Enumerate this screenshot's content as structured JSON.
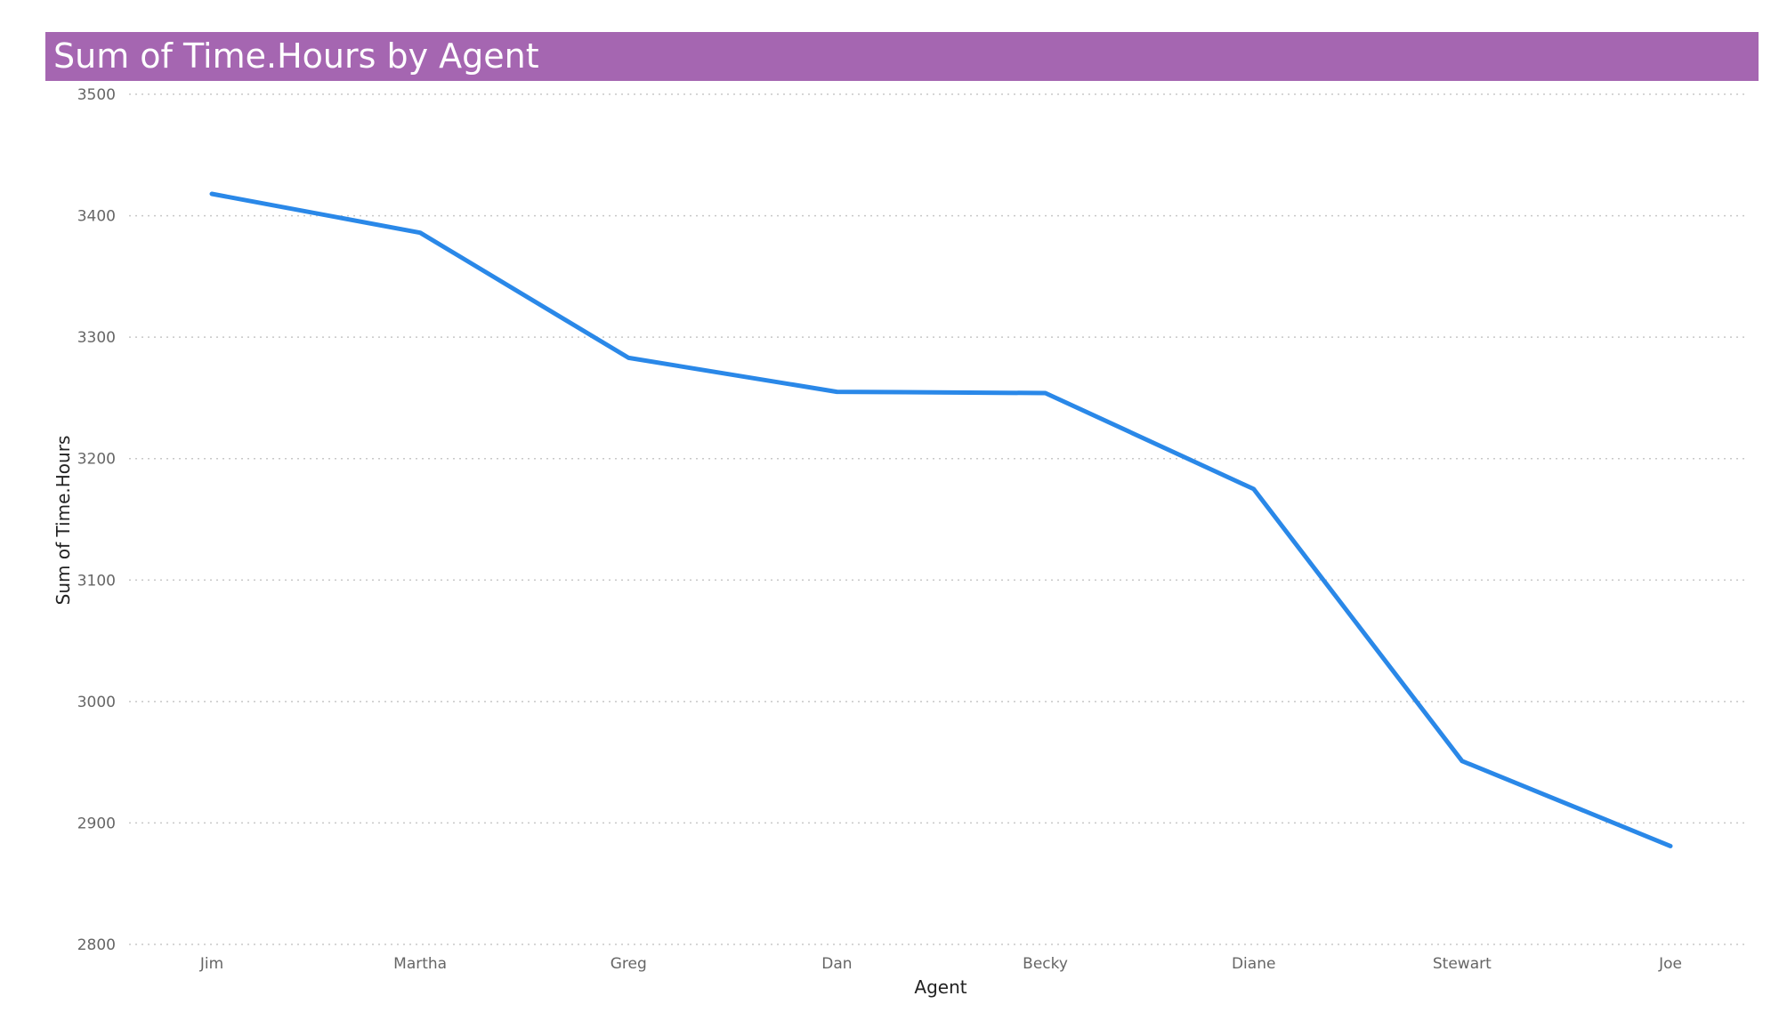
{
  "chart_data": {
    "type": "line",
    "title": "Sum of Time.Hours by Agent",
    "xlabel": "Agent",
    "ylabel": "Sum of Time.Hours",
    "categories": [
      "Jim",
      "Martha",
      "Greg",
      "Dan",
      "Becky",
      "Diane",
      "Stewart",
      "Joe"
    ],
    "series": [
      {
        "values": [
          3418,
          3386,
          3283,
          3255,
          3254,
          3175,
          2951,
          2881
        ],
        "color": "#2a88e8"
      }
    ],
    "ylim": [
      2800,
      3500
    ],
    "yticks": [
      3500,
      3400,
      3300,
      3200,
      3100,
      3000,
      2900,
      2800
    ],
    "grid": true,
    "legend": "none"
  },
  "colors": {
    "title_bar": "#a566b1",
    "title_text": "#ffffff",
    "series": "#2a88e8"
  }
}
